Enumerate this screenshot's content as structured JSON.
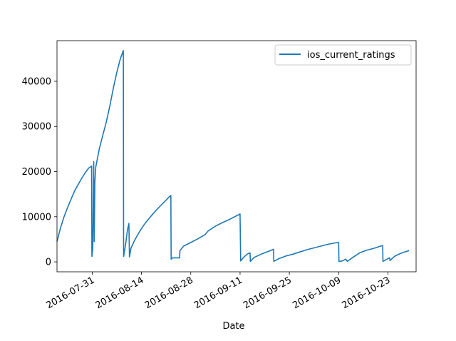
{
  "chart_data": {
    "type": "line",
    "title": "",
    "xlabel": "Date",
    "ylabel": "",
    "x_type": "date",
    "xlim": [
      "2016-07-21",
      "2016-10-31"
    ],
    "ylim": [
      -2200,
      49000
    ],
    "x_ticks": [
      "2016-07-31",
      "2016-08-14",
      "2016-08-28",
      "2016-09-11",
      "2016-09-25",
      "2016-10-09",
      "2016-10-23"
    ],
    "y_ticks": [
      0,
      10000,
      20000,
      30000,
      40000
    ],
    "y_tick_labels": [
      "0",
      "10000",
      "20000",
      "30000",
      "40000"
    ],
    "legend": {
      "position": "top-right"
    },
    "grid": false,
    "series": [
      {
        "name": "ios_current_ratings",
        "color": "#1f77b4",
        "points": [
          [
            "2016-07-21",
            4500
          ],
          [
            "2016-07-22",
            7500
          ],
          [
            "2016-07-23",
            10000
          ],
          [
            "2016-07-24",
            12000
          ],
          [
            "2016-07-25",
            13900
          ],
          [
            "2016-07-26",
            15700
          ],
          [
            "2016-07-27",
            17100
          ],
          [
            "2016-07-28",
            18500
          ],
          [
            "2016-07-29",
            19700
          ],
          [
            "2016-07-30",
            20800
          ],
          [
            "2016-07-30T20:00",
            21200
          ],
          [
            "2016-07-30T22:00",
            1200
          ],
          [
            "2016-07-31T04:00",
            3000
          ],
          [
            "2016-07-31T10:00",
            22200
          ],
          [
            "2016-07-31T14:00",
            4500
          ],
          [
            "2016-07-31T18:00",
            17500
          ],
          [
            "2016-08-01",
            21000
          ],
          [
            "2016-08-02",
            25000
          ],
          [
            "2016-08-03",
            28000
          ],
          [
            "2016-08-04",
            31000
          ],
          [
            "2016-08-05",
            34500
          ],
          [
            "2016-08-06",
            38500
          ],
          [
            "2016-08-07",
            42000
          ],
          [
            "2016-08-08",
            45000
          ],
          [
            "2016-08-08T20:00",
            46800
          ],
          [
            "2016-08-08T22:00",
            1200
          ],
          [
            "2016-08-09T12:00",
            4000
          ],
          [
            "2016-08-10",
            7000
          ],
          [
            "2016-08-10T10:00",
            8500
          ],
          [
            "2016-08-10T14:00",
            1100
          ],
          [
            "2016-08-11",
            3000
          ],
          [
            "2016-08-12",
            4700
          ],
          [
            "2016-08-13",
            6100
          ],
          [
            "2016-08-14",
            7400
          ],
          [
            "2016-08-15",
            8500
          ],
          [
            "2016-08-16",
            9500
          ],
          [
            "2016-08-17",
            10400
          ],
          [
            "2016-08-18",
            11300
          ],
          [
            "2016-08-19",
            12100
          ],
          [
            "2016-08-20",
            12900
          ],
          [
            "2016-08-21",
            13700
          ],
          [
            "2016-08-22",
            14500
          ],
          [
            "2016-08-22T08:00",
            14700
          ],
          [
            "2016-08-22T10:00",
            600
          ],
          [
            "2016-08-22T20:00",
            900
          ],
          [
            "2016-08-24T20:00",
            900
          ],
          [
            "2016-08-24T22:00",
            2500
          ],
          [
            "2016-08-26",
            3500
          ],
          [
            "2016-08-28",
            4300
          ],
          [
            "2016-08-30",
            5100
          ],
          [
            "2016-09-01",
            6000
          ],
          [
            "2016-09-02",
            6900
          ],
          [
            "2016-09-04",
            7900
          ],
          [
            "2016-09-06",
            8700
          ],
          [
            "2016-09-08",
            9400
          ],
          [
            "2016-09-10",
            10200
          ],
          [
            "2016-09-11",
            10600
          ],
          [
            "2016-09-11T04:00",
            200
          ],
          [
            "2016-09-12",
            1000
          ],
          [
            "2016-09-13",
            1700
          ],
          [
            "2016-09-13T20:00",
            2000
          ],
          [
            "2016-09-13T22:00",
            100
          ],
          [
            "2016-09-15",
            1000
          ],
          [
            "2016-09-17",
            1700
          ],
          [
            "2016-09-19",
            2300
          ],
          [
            "2016-09-20T12:00",
            2800
          ],
          [
            "2016-09-20T14:00",
            100
          ],
          [
            "2016-09-22",
            700
          ],
          [
            "2016-09-24",
            1300
          ],
          [
            "2016-09-26",
            1700
          ],
          [
            "2016-09-28",
            2200
          ],
          [
            "2016-09-30",
            2700
          ],
          [
            "2016-10-02",
            3100
          ],
          [
            "2016-10-04",
            3500
          ],
          [
            "2016-10-06",
            3900
          ],
          [
            "2016-10-08",
            4200
          ],
          [
            "2016-10-09",
            4300
          ],
          [
            "2016-10-09T02:00",
            100
          ],
          [
            "2016-10-10",
            200
          ],
          [
            "2016-10-11",
            600
          ],
          [
            "2016-10-11T12:00",
            100
          ],
          [
            "2016-10-13",
            1000
          ],
          [
            "2016-10-15",
            2000
          ],
          [
            "2016-10-17",
            2600
          ],
          [
            "2016-10-19",
            3000
          ],
          [
            "2016-10-21",
            3500
          ],
          [
            "2016-10-21T12:00",
            3600
          ],
          [
            "2016-10-21T14:00",
            100
          ],
          [
            "2016-10-23",
            700
          ],
          [
            "2016-10-23T12:00",
            900
          ],
          [
            "2016-10-23T14:00",
            300
          ],
          [
            "2016-10-25",
            1300
          ],
          [
            "2016-10-27",
            2000
          ],
          [
            "2016-10-29",
            2500
          ]
        ]
      }
    ]
  }
}
